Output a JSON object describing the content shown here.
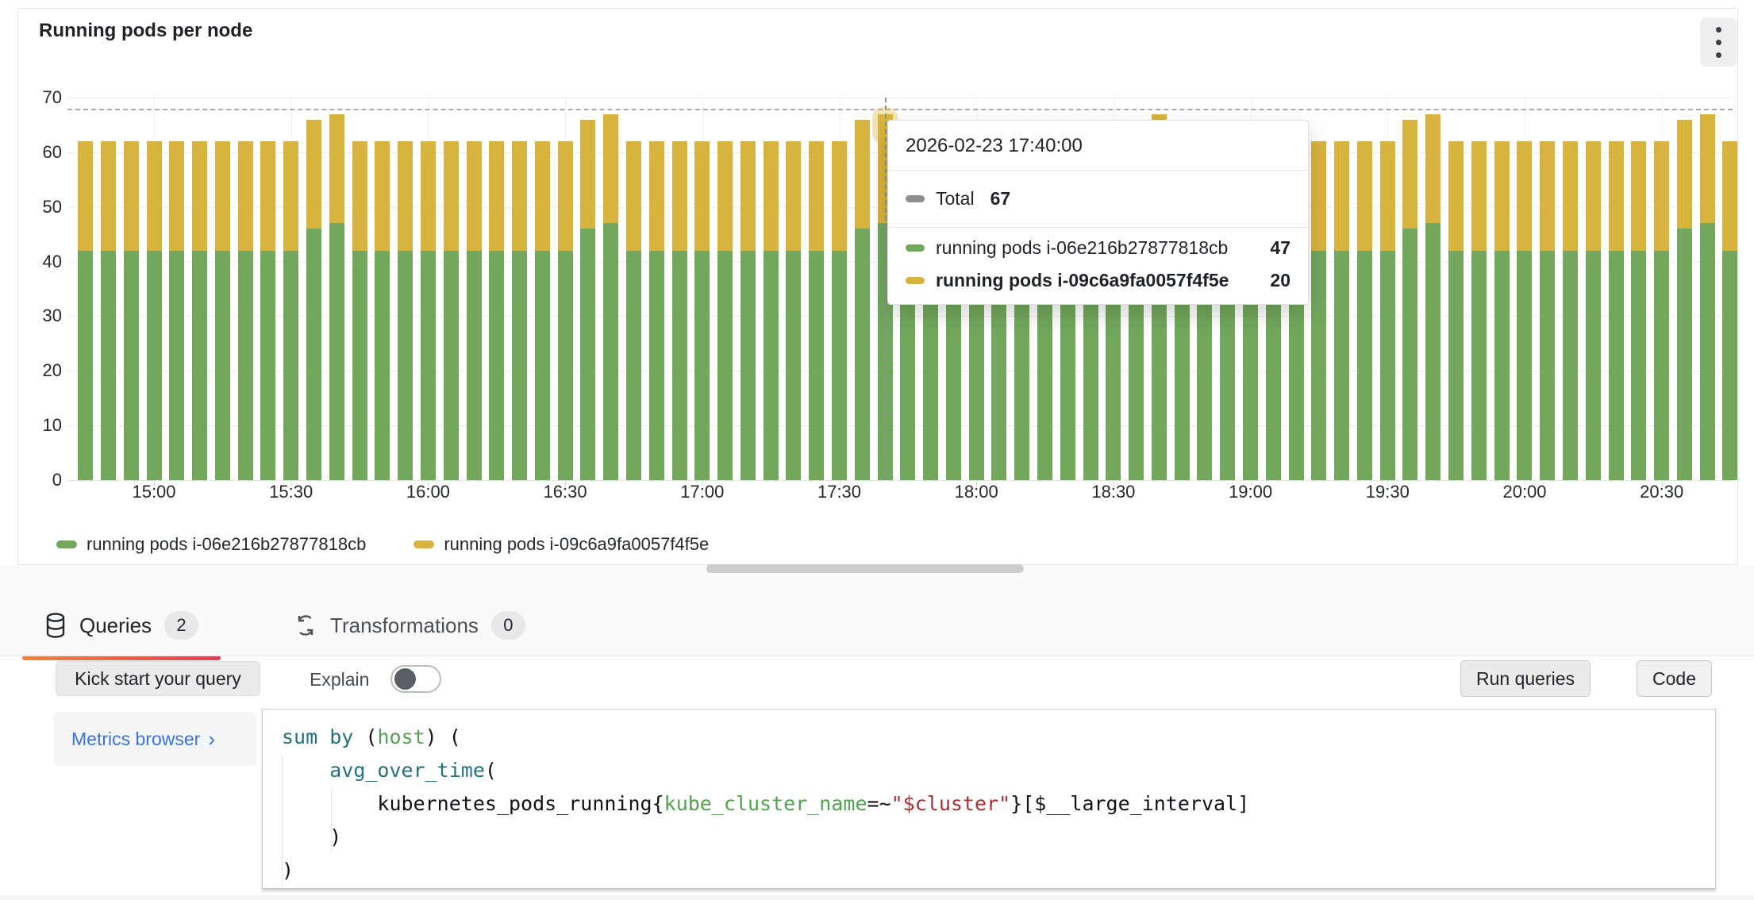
{
  "panel": {
    "title": "Running pods per node",
    "kebab_icon": "kebab-menu-icon"
  },
  "chart_data": {
    "type": "bar",
    "stacked": true,
    "title": "Running pods per node",
    "xlabel": "",
    "ylabel": "",
    "ylim": [
      0,
      70
    ],
    "y_ticks": [
      0,
      10,
      20,
      30,
      40,
      50,
      60,
      70
    ],
    "x_tick_labels": [
      "15:00",
      "15:30",
      "16:00",
      "16:30",
      "17:00",
      "17:30",
      "18:00",
      "18:30",
      "19:00",
      "19:30",
      "20:00",
      "20:30"
    ],
    "grid": true,
    "legend_position": "bottom",
    "dashed_max_line": 68,
    "hovered_index": 35,
    "x": [
      "14:45",
      "14:50",
      "14:55",
      "15:00",
      "15:05",
      "15:10",
      "15:15",
      "15:20",
      "15:25",
      "15:30",
      "15:35",
      "15:40",
      "15:45",
      "15:50",
      "15:55",
      "16:00",
      "16:05",
      "16:10",
      "16:15",
      "16:20",
      "16:25",
      "16:30",
      "16:35",
      "16:40",
      "16:45",
      "16:50",
      "16:55",
      "17:00",
      "17:05",
      "17:10",
      "17:15",
      "17:20",
      "17:25",
      "17:30",
      "17:35",
      "17:40",
      "17:45",
      "17:50",
      "17:55",
      "18:00",
      "18:05",
      "18:10",
      "18:15",
      "18:20",
      "18:25",
      "18:30",
      "18:35",
      "18:40",
      "18:45",
      "18:50",
      "18:55",
      "19:00",
      "19:05",
      "19:10",
      "19:15",
      "19:20",
      "19:25",
      "19:30",
      "19:35",
      "19:40",
      "19:45",
      "19:50",
      "19:55",
      "20:00",
      "20:05",
      "20:10",
      "20:15",
      "20:20",
      "20:25",
      "20:30",
      "20:35",
      "20:40",
      "20:45"
    ],
    "series": [
      {
        "name": "running pods i-06e216b27877818cb",
        "color": "#72a75c",
        "values": [
          42,
          42,
          42,
          42,
          42,
          42,
          42,
          42,
          42,
          42,
          46,
          47,
          42,
          42,
          42,
          42,
          42,
          42,
          42,
          42,
          42,
          42,
          46,
          47,
          42,
          42,
          42,
          42,
          42,
          42,
          42,
          42,
          42,
          42,
          46,
          47,
          42,
          42,
          42,
          42,
          42,
          42,
          42,
          42,
          42,
          42,
          46,
          47,
          42,
          42,
          42,
          42,
          42,
          42,
          42,
          42,
          42,
          42,
          46,
          47,
          42,
          42,
          42,
          42,
          42,
          42,
          42,
          42,
          42,
          42,
          46,
          47,
          42
        ]
      },
      {
        "name": "running pods i-09c6a9fa0057f4f5e",
        "color": "#d8b33d",
        "values": [
          20,
          20,
          20,
          20,
          20,
          20,
          20,
          20,
          20,
          20,
          20,
          20,
          20,
          20,
          20,
          20,
          20,
          20,
          20,
          20,
          20,
          20,
          20,
          20,
          20,
          20,
          20,
          20,
          20,
          20,
          20,
          20,
          20,
          20,
          20,
          20,
          20,
          20,
          20,
          20,
          20,
          20,
          20,
          20,
          20,
          20,
          20,
          20,
          20,
          20,
          20,
          20,
          20,
          20,
          20,
          20,
          20,
          20,
          20,
          20,
          20,
          20,
          20,
          20,
          20,
          20,
          20,
          20,
          20,
          20,
          20,
          20,
          20
        ]
      }
    ]
  },
  "tooltip": {
    "timestamp": "2026-02-23 17:40:00",
    "total_label": "Total",
    "total_value": "67",
    "total_color": "#8e8e90",
    "rows": [
      {
        "label": "running pods i-06e216b27877818cb",
        "value": "47",
        "color": "#72a75c",
        "highlight": false
      },
      {
        "label": "running pods i-09c6a9fa0057f4f5e",
        "value": "20",
        "color": "#d8b33d",
        "highlight": true
      }
    ]
  },
  "legend": {
    "items": [
      {
        "label": "running pods i-06e216b27877818cb",
        "color": "#72a75c"
      },
      {
        "label": "running pods i-09c6a9fa0057f4f5e",
        "color": "#d8b33d"
      }
    ]
  },
  "tabs": {
    "queries": {
      "label": "Queries",
      "count": "2",
      "icon": "database-icon"
    },
    "transformations": {
      "label": "Transformations",
      "count": "0",
      "icon": "process-arrows-icon"
    }
  },
  "query_toolbar": {
    "kickstart_label": "Kick start your query",
    "explain_label": "Explain",
    "run_label": "Run queries",
    "code_label": "Code"
  },
  "query_editor": {
    "metrics_browser_label": "Metrics browser",
    "metrics_browser_chevron": "›",
    "code_lines": [
      [
        {
          "t": "sum",
          "c": "kw"
        },
        {
          "t": " ",
          "c": "pl"
        },
        {
          "t": "by",
          "c": "kw"
        },
        {
          "t": " (",
          "c": "pl"
        },
        {
          "t": "host",
          "c": "lbl"
        },
        {
          "t": ") (",
          "c": "pl"
        }
      ],
      [
        {
          "t": "    ",
          "c": "pl"
        },
        {
          "t": "avg_over_time",
          "c": "fn"
        },
        {
          "t": "(",
          "c": "pl"
        }
      ],
      [
        {
          "t": "        kubernetes_pods_running{",
          "c": "pl"
        },
        {
          "t": "kube_cluster_name",
          "c": "lbl"
        },
        {
          "t": "=~",
          "c": "pl"
        },
        {
          "t": "\"$cluster\"",
          "c": "str"
        },
        {
          "t": "}[$__large_interval]",
          "c": "pl"
        }
      ],
      [
        {
          "t": "    )",
          "c": "pl"
        }
      ],
      [
        {
          "t": ")",
          "c": "pl"
        }
      ]
    ]
  }
}
